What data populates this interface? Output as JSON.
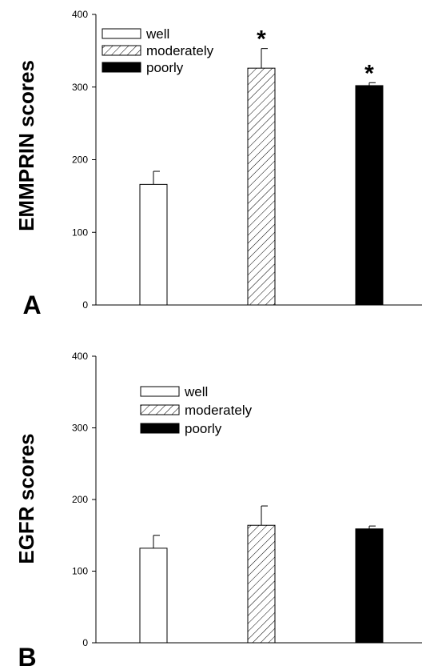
{
  "chart_data": [
    {
      "type": "bar",
      "panel_label": "A",
      "ylabel": "EMMPRIN scores",
      "ylim": [
        0,
        400
      ],
      "yticks": [
        0,
        100,
        200,
        300,
        400
      ],
      "categories": [
        "well",
        "moderately",
        "poorly"
      ],
      "values": [
        166,
        326,
        302
      ],
      "errors": [
        18,
        27,
        4
      ],
      "significance": [
        "",
        "*",
        "*"
      ],
      "fills": [
        "white",
        "hatched",
        "black"
      ],
      "legend": [
        "well",
        "moderately",
        "poorly"
      ],
      "legend_position": "top-left",
      "grid": false
    },
    {
      "type": "bar",
      "panel_label": "B",
      "ylabel": "EGFR scores",
      "ylim": [
        0,
        400
      ],
      "yticks": [
        0,
        100,
        200,
        300,
        400
      ],
      "categories": [
        "well",
        "moderately",
        "poorly"
      ],
      "values": [
        132,
        164,
        159
      ],
      "errors": [
        18,
        27,
        4
      ],
      "significance": [
        "",
        "",
        ""
      ],
      "fills": [
        "white",
        "hatched",
        "black"
      ],
      "legend": [
        "well",
        "moderately",
        "poorly"
      ],
      "legend_position": "top-center",
      "grid": false
    }
  ]
}
